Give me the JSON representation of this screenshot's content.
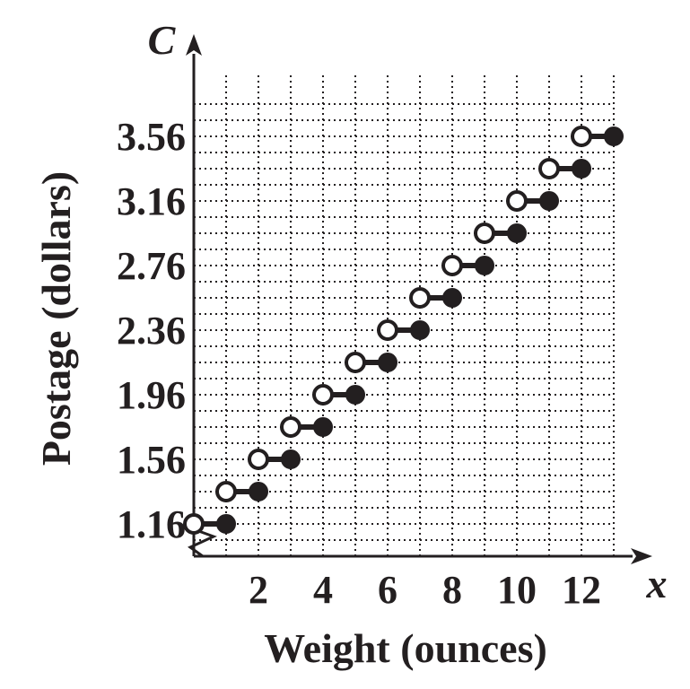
{
  "chart_data": {
    "type": "step",
    "title": "",
    "xlabel": "Weight (ounces)",
    "ylabel": "Postage (dollars)",
    "x_axis_letter": "x",
    "y_axis_letter": "C",
    "xlim": [
      0,
      13
    ],
    "ylim": [
      0.96,
      3.76
    ],
    "x_ticks": [
      2,
      4,
      6,
      8,
      10,
      12
    ],
    "y_ticks": [
      1.16,
      1.56,
      1.96,
      2.36,
      2.76,
      3.16,
      3.56
    ],
    "y_tick_labels": [
      "1.16",
      "1.56",
      "1.96",
      "2.36",
      "2.76",
      "3.16",
      "3.56"
    ],
    "grid": true,
    "steps": [
      {
        "x_start": 0,
        "x_end": 1,
        "y": 1.16
      },
      {
        "x_start": 1,
        "x_end": 2,
        "y": 1.36
      },
      {
        "x_start": 2,
        "x_end": 3,
        "y": 1.56
      },
      {
        "x_start": 3,
        "x_end": 4,
        "y": 1.76
      },
      {
        "x_start": 4,
        "x_end": 5,
        "y": 1.96
      },
      {
        "x_start": 5,
        "x_end": 6,
        "y": 2.16
      },
      {
        "x_start": 6,
        "x_end": 7,
        "y": 2.36
      },
      {
        "x_start": 7,
        "x_end": 8,
        "y": 2.56
      },
      {
        "x_start": 8,
        "x_end": 9,
        "y": 2.76
      },
      {
        "x_start": 9,
        "x_end": 10,
        "y": 2.96
      },
      {
        "x_start": 10,
        "x_end": 11,
        "y": 3.16
      },
      {
        "x_start": 11,
        "x_end": 12,
        "y": 3.36
      },
      {
        "x_start": 12,
        "x_end": 13,
        "y": 3.56
      }
    ],
    "endpoints": {
      "start": "open",
      "end": "closed"
    }
  }
}
